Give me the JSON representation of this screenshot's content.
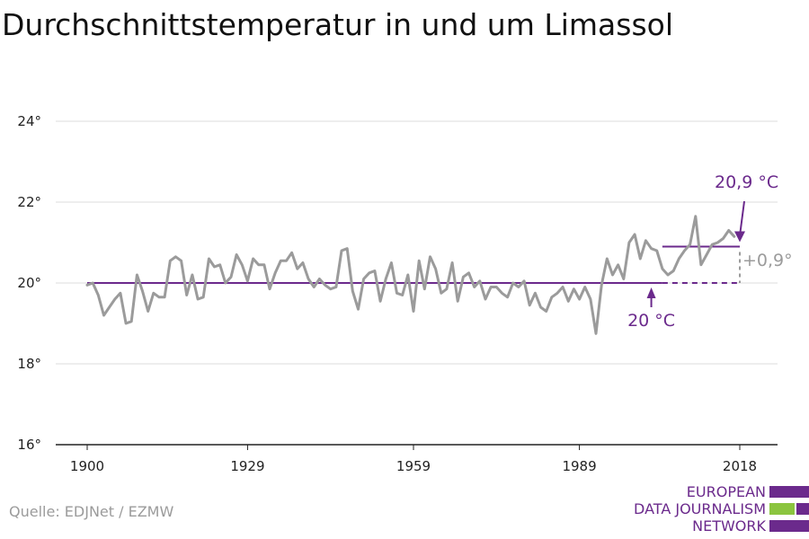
{
  "title": "Durchschnittstemperatur in und um Limassol",
  "source": "Quelle: EDJNet / EZMW",
  "logo": {
    "lines": [
      "EUROPEAN",
      "DATA JOURNALISM",
      "NETWORK"
    ],
    "colors": {
      "purple": "#6b2a8c",
      "green": "#8bc53f"
    }
  },
  "colors": {
    "series": "#9b9b9b",
    "reference": "#6b2a8c",
    "grid": "#dddddd",
    "axis": "#222222"
  },
  "chart_data": {
    "type": "line",
    "title": "Durchschnittstemperatur in und um Limassol",
    "xlim": [
      1900,
      2018
    ],
    "ylim": [
      16,
      24
    ],
    "x_ticks": [
      1900,
      1929,
      1959,
      1989,
      2018
    ],
    "x_tick_labels": [
      "1900",
      "1929",
      "1959",
      "1989",
      "2018"
    ],
    "y_ticks": [
      16,
      18,
      20,
      22,
      24
    ],
    "y_tick_labels": [
      "16°",
      "18°",
      "20°",
      "22°",
      "24°"
    ],
    "grid": "horizontal",
    "series": [
      {
        "x_start": 1900,
        "x_step": 1,
        "values": [
          19.95,
          20.0,
          19.7,
          19.2,
          19.4,
          19.6,
          19.75,
          19.0,
          19.05,
          20.2,
          19.8,
          19.3,
          19.75,
          19.65,
          19.65,
          20.55,
          20.65,
          20.55,
          19.7,
          20.2,
          19.6,
          19.65,
          20.6,
          20.4,
          20.45,
          20.0,
          20.15,
          20.7,
          20.45,
          20.05,
          20.6,
          20.45,
          20.45,
          19.85,
          20.25,
          20.55,
          20.55,
          20.75,
          20.35,
          20.5,
          20.1,
          19.9,
          20.1,
          19.95,
          19.85,
          19.9,
          20.8,
          20.85,
          19.8,
          19.35,
          20.1,
          20.25,
          20.3,
          19.55,
          20.1,
          20.5,
          19.75,
          19.7,
          20.2,
          19.3,
          20.55,
          19.85,
          20.65,
          20.35,
          19.75,
          19.85,
          20.5,
          19.55,
          20.15,
          20.25,
          19.9,
          20.05,
          19.6,
          19.9,
          19.9,
          19.75,
          19.65,
          20.0,
          19.9,
          20.05,
          19.45,
          19.75,
          19.4,
          19.3,
          19.65,
          19.75,
          19.9,
          19.55,
          19.85,
          19.6,
          19.9,
          19.6,
          18.75,
          19.95,
          20.6,
          20.2,
          20.45,
          20.1,
          21.0,
          21.2,
          20.6,
          21.05,
          20.85,
          20.8,
          20.35,
          20.2,
          20.3,
          20.6,
          20.8,
          20.95,
          21.65,
          20.45,
          20.7,
          20.95,
          21.0,
          21.1,
          21.3,
          21.15
        ]
      }
    ],
    "reference_lines": [
      {
        "value": 20.0,
        "x_start": 1900,
        "x_solid_end": 2004,
        "x_dashed_end": 2018,
        "label": "20 °C"
      },
      {
        "value": 20.9,
        "x_start": 2004,
        "x_end": 2018,
        "label": "20,9 °C"
      }
    ],
    "difference_label": "+0,9°"
  }
}
